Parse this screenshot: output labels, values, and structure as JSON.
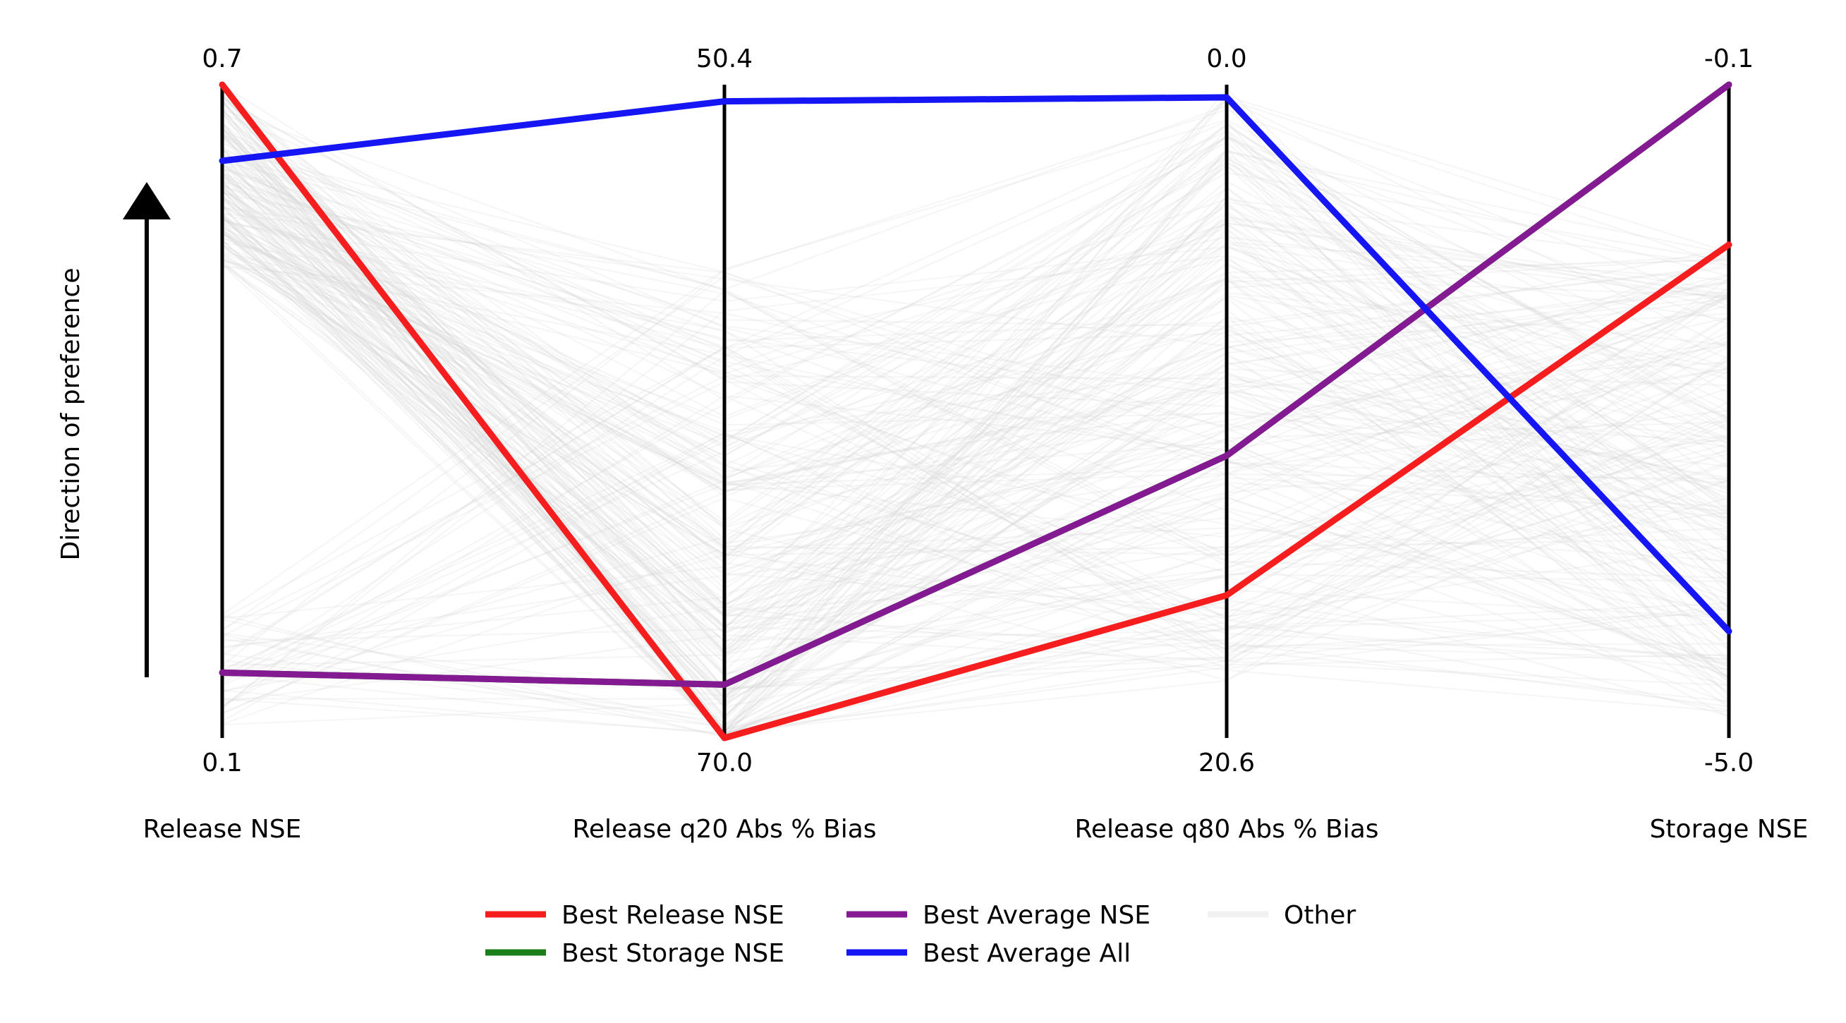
{
  "chart_data": {
    "type": "parallel-coordinates",
    "direction_label": "Direction of preference",
    "axes": [
      {
        "name": "Release NSE",
        "top_label": "0.7",
        "bottom_label": "0.1",
        "top_value": 0.7,
        "bottom_value": 0.1
      },
      {
        "name": "Release q20 Abs % Bias",
        "top_label": "50.4",
        "bottom_label": "70.0",
        "top_value": 50.4,
        "bottom_value": 70.0
      },
      {
        "name": "Release q80 Abs % Bias",
        "top_label": "0.0",
        "bottom_label": "20.6",
        "top_value": 0.0,
        "bottom_value": 20.6
      },
      {
        "name": "Storage NSE",
        "top_label": "-0.1",
        "bottom_label": "-5.0",
        "top_value": -0.1,
        "bottom_value": -5.0
      }
    ],
    "highlighted_series": [
      {
        "name": "Best Release NSE",
        "color": "#f51d1d",
        "values": [
          0.7,
          70.0,
          16.1,
          -1.3
        ]
      },
      {
        "name": "Best Storage NSE",
        "color": "#1a7f1a",
        "values": [
          0.16,
          68.4,
          11.7,
          -0.1
        ]
      },
      {
        "name": "Best Average NSE",
        "color": "#841a92",
        "values": [
          0.16,
          68.4,
          11.7,
          -0.1
        ]
      },
      {
        "name": "Best Average All",
        "color": "#1616f5",
        "values": [
          0.63,
          50.9,
          0.4,
          -4.2
        ]
      }
    ],
    "other_series_name": "Other",
    "other_series_color": "#d8d8d8",
    "other_series_count": 220,
    "legend": {
      "placement": "bottom-center",
      "entries": [
        "Best Release NSE",
        "Best Storage NSE",
        "Best Average NSE",
        "Best Average All",
        "Other"
      ]
    }
  }
}
